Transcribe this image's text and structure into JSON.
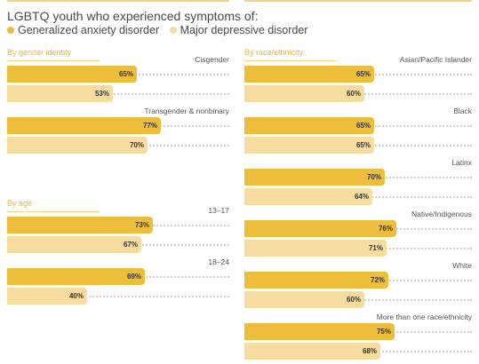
{
  "header": {
    "title": "LGBTQ youth who experienced symptoms of:",
    "legend": [
      {
        "label": "Generalized anxiety disorder",
        "color": "#edbe3c"
      },
      {
        "label": "Major depressive disorder",
        "color": "#f7dca0"
      }
    ]
  },
  "chart_data": [
    {
      "type": "bar",
      "orientation": "horizontal",
      "title": "By gender identity",
      "categories": [
        "Cisgender",
        "Transgender & nonbinary"
      ],
      "series": [
        {
          "name": "Generalized anxiety disorder",
          "values": [
            65,
            77
          ]
        },
        {
          "name": "Major depressive disorder",
          "values": [
            53,
            70
          ]
        }
      ],
      "unit": "%"
    },
    {
      "type": "bar",
      "orientation": "horizontal",
      "title": "By age",
      "categories": [
        "13–17",
        "18–24"
      ],
      "series": [
        {
          "name": "Generalized anxiety disorder",
          "values": [
            73,
            69
          ]
        },
        {
          "name": "Major depressive disorder",
          "values": [
            67,
            40
          ]
        }
      ],
      "unit": "%"
    },
    {
      "type": "bar",
      "orientation": "horizontal",
      "title": "By race/ethnicity",
      "categories": [
        "Asian/Pacific Islander",
        "Black",
        "Latinx",
        "Native/Indigenous",
        "White",
        "More than one race/ethnicity"
      ],
      "series": [
        {
          "name": "Generalized anxiety disorder",
          "values": [
            65,
            65,
            70,
            76,
            72,
            75
          ]
        },
        {
          "name": "Major depressive disorder",
          "values": [
            60,
            65,
            64,
            71,
            60,
            68
          ]
        }
      ],
      "unit": "%"
    }
  ]
}
